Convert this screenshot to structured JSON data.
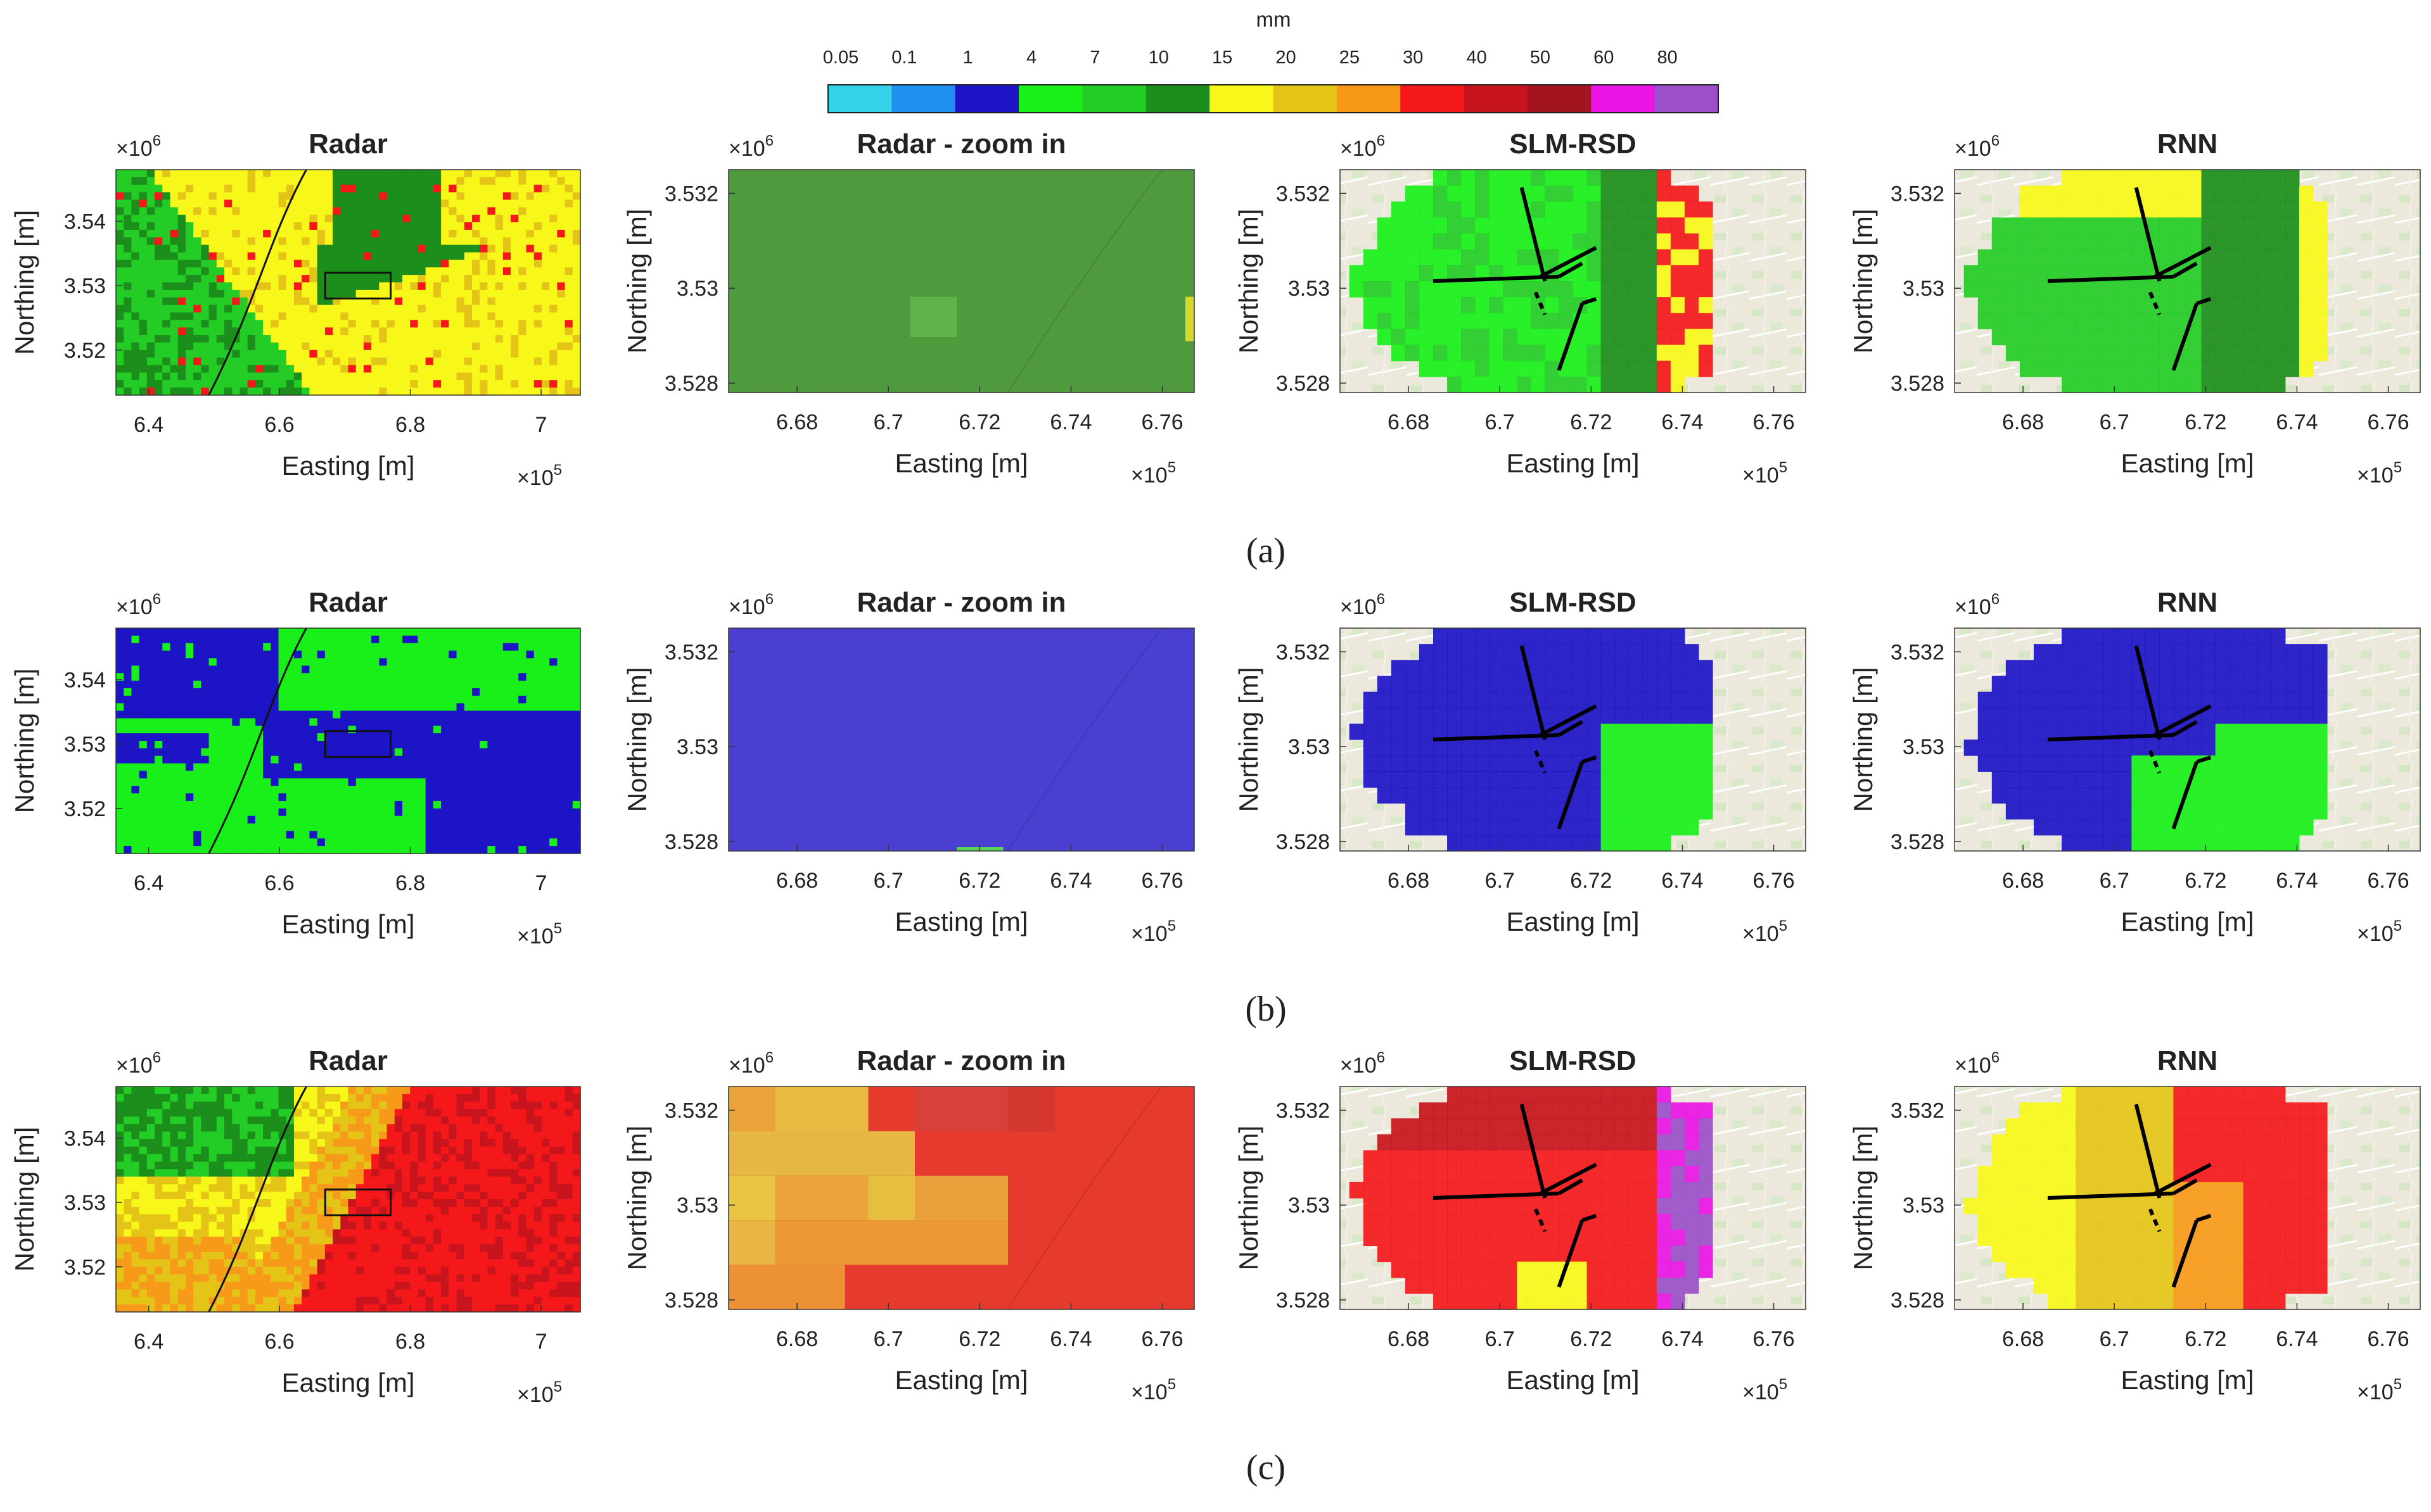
{
  "colorbar": {
    "unit": "mm",
    "tick_labels": [
      "0.05",
      "0.1",
      "1",
      "4",
      "7",
      "10",
      "15",
      "20",
      "25",
      "30",
      "40",
      "50",
      "60",
      "80"
    ],
    "bin_colors": [
      "#35d3ec",
      "#1f8ff0",
      "#1d14c6",
      "#19f019",
      "#24cc26",
      "#1b8e1b",
      "#f7f71a",
      "#e5c418",
      "#f79a1a",
      "#f4181b",
      "#c8141c",
      "#a21420",
      "#ea14e4",
      "#9b4fc8"
    ]
  },
  "axis_text": {
    "xlabel": "Easting [m]",
    "ylabel": "Northing [m]",
    "x_exponent_base": "×10",
    "x_exponent_power": "5",
    "y_exponent_base": "×10",
    "y_exponent_power": "6"
  },
  "rows": [
    {
      "caption": "(a)"
    },
    {
      "caption": "(b)"
    },
    {
      "caption": "(c)"
    }
  ],
  "chart_data": [
    {
      "type": "heatmap",
      "panel": "a-radar",
      "title": "Radar",
      "xlabel": "Easting [m]",
      "ylabel": "Northing [m]",
      "xlim": [
        6.35,
        7.06
      ],
      "ylim": [
        3.513,
        3.548
      ],
      "x_ticks": [
        6.4,
        6.6,
        6.8,
        7
      ],
      "x_tick_labels": [
        "6.4",
        "6.6",
        "6.8",
        "7"
      ],
      "y_ticks": [
        3.52,
        3.53,
        3.54
      ],
      "y_tick_labels": [
        "3.52",
        "3.53",
        "3.54"
      ],
      "dominant_classes_mm": [
        "7-10",
        "10-15",
        "15-20"
      ],
      "zoom_box_x": [
        6.67,
        6.77
      ],
      "zoom_box_y": [
        3.528,
        3.532
      ]
    },
    {
      "type": "heatmap",
      "panel": "a-radar-zoom",
      "title": "Radar - zoom in",
      "xlabel": "Easting [m]",
      "ylabel": "Northing [m]",
      "xlim": [
        6.665,
        6.767
      ],
      "ylim": [
        3.5278,
        3.5325
      ],
      "x_ticks": [
        6.68,
        6.7,
        6.72,
        6.74,
        6.76
      ],
      "x_tick_labels": [
        "6.68",
        "6.7",
        "6.72",
        "6.74",
        "6.76"
      ],
      "y_ticks": [
        3.528,
        3.53,
        3.532
      ],
      "y_tick_labels": [
        "3.528",
        "3.53",
        "3.532"
      ],
      "dominant_classes_mm": [
        "7-10"
      ]
    },
    {
      "type": "heatmap",
      "panel": "a-slm-rsd",
      "title": "SLM-RSD",
      "xlabel": "Easting [m]",
      "ylabel": "Northing [m]",
      "xlim": [
        6.665,
        6.767
      ],
      "ylim": [
        3.5278,
        3.5325
      ],
      "x_ticks": [
        6.68,
        6.7,
        6.72,
        6.74,
        6.76
      ],
      "x_tick_labels": [
        "6.68",
        "6.7",
        "6.72",
        "6.74",
        "6.76"
      ],
      "y_ticks": [
        3.528,
        3.53,
        3.532
      ],
      "y_tick_labels": [
        "3.528",
        "3.53",
        "3.532"
      ],
      "dominant_classes_mm": [
        "4-7",
        "7-10",
        "10-15",
        "15-20",
        "30-40"
      ]
    },
    {
      "type": "heatmap",
      "panel": "a-rnn",
      "title": "RNN",
      "xlabel": "Easting [m]",
      "ylabel": "Northing [m]",
      "xlim": [
        6.665,
        6.767
      ],
      "ylim": [
        3.5278,
        3.5325
      ],
      "x_ticks": [
        6.68,
        6.7,
        6.72,
        6.74,
        6.76
      ],
      "x_tick_labels": [
        "6.68",
        "6.7",
        "6.72",
        "6.74",
        "6.76"
      ],
      "y_ticks": [
        3.528,
        3.53,
        3.532
      ],
      "y_tick_labels": [
        "3.528",
        "3.53",
        "3.532"
      ],
      "dominant_classes_mm": [
        "7-10",
        "10-15",
        "15-20"
      ]
    },
    {
      "type": "heatmap",
      "panel": "b-radar",
      "title": "Radar",
      "xlabel": "Easting [m]",
      "ylabel": "Northing [m]",
      "xlim": [
        6.35,
        7.06
      ],
      "ylim": [
        3.513,
        3.548
      ],
      "x_ticks": [
        6.4,
        6.6,
        6.8,
        7
      ],
      "x_tick_labels": [
        "6.4",
        "6.6",
        "6.8",
        "7"
      ],
      "y_ticks": [
        3.52,
        3.53,
        3.54
      ],
      "y_tick_labels": [
        "3.52",
        "3.53",
        "3.54"
      ],
      "dominant_classes_mm": [
        "1-4",
        "4-7"
      ],
      "zoom_box_x": [
        6.67,
        6.77
      ],
      "zoom_box_y": [
        3.528,
        3.532
      ]
    },
    {
      "type": "heatmap",
      "panel": "b-radar-zoom",
      "title": "Radar - zoom in",
      "xlabel": "Easting [m]",
      "ylabel": "Northing [m]",
      "xlim": [
        6.665,
        6.767
      ],
      "ylim": [
        3.5278,
        3.5325
      ],
      "x_ticks": [
        6.68,
        6.7,
        6.72,
        6.74,
        6.76
      ],
      "x_tick_labels": [
        "6.68",
        "6.7",
        "6.72",
        "6.74",
        "6.76"
      ],
      "y_ticks": [
        3.528,
        3.53,
        3.532
      ],
      "y_tick_labels": [
        "3.528",
        "3.53",
        "3.532"
      ],
      "dominant_classes_mm": [
        "1-4"
      ]
    },
    {
      "type": "heatmap",
      "panel": "b-slm-rsd",
      "title": "SLM-RSD",
      "xlabel": "Easting [m]",
      "ylabel": "Northing [m]",
      "xlim": [
        6.665,
        6.767
      ],
      "ylim": [
        3.5278,
        3.5325
      ],
      "x_ticks": [
        6.68,
        6.7,
        6.72,
        6.74,
        6.76
      ],
      "x_tick_labels": [
        "6.68",
        "6.7",
        "6.72",
        "6.74",
        "6.76"
      ],
      "y_ticks": [
        3.528,
        3.53,
        3.532
      ],
      "y_tick_labels": [
        "3.528",
        "3.53",
        "3.532"
      ],
      "dominant_classes_mm": [
        "1-4",
        "4-7"
      ]
    },
    {
      "type": "heatmap",
      "panel": "b-rnn",
      "title": "RNN",
      "xlabel": "Easting [m]",
      "ylabel": "Northing [m]",
      "xlim": [
        6.665,
        6.767
      ],
      "ylim": [
        3.5278,
        3.5325
      ],
      "x_ticks": [
        6.68,
        6.7,
        6.72,
        6.74,
        6.76
      ],
      "x_tick_labels": [
        "6.68",
        "6.7",
        "6.72",
        "6.74",
        "6.76"
      ],
      "y_ticks": [
        3.528,
        3.53,
        3.532
      ],
      "y_tick_labels": [
        "3.528",
        "3.53",
        "3.532"
      ],
      "dominant_classes_mm": [
        "1-4",
        "4-7"
      ]
    },
    {
      "type": "heatmap",
      "panel": "c-radar",
      "title": "Radar",
      "xlabel": "Easting [m]",
      "ylabel": "Northing [m]",
      "xlim": [
        6.35,
        7.06
      ],
      "ylim": [
        3.513,
        3.548
      ],
      "x_ticks": [
        6.4,
        6.6,
        6.8,
        7
      ],
      "x_tick_labels": [
        "6.4",
        "6.6",
        "6.8",
        "7"
      ],
      "y_ticks": [
        3.52,
        3.53,
        3.54
      ],
      "y_tick_labels": [
        "3.52",
        "3.53",
        "3.54"
      ],
      "dominant_classes_mm": [
        "10-15",
        "15-20",
        "20-25",
        "25-30",
        "30-40"
      ],
      "zoom_box_x": [
        6.67,
        6.77
      ],
      "zoom_box_y": [
        3.528,
        3.532
      ]
    },
    {
      "type": "heatmap",
      "panel": "c-radar-zoom",
      "title": "Radar - zoom in",
      "xlabel": "Easting [m]",
      "ylabel": "Northing [m]",
      "xlim": [
        6.665,
        6.767
      ],
      "ylim": [
        3.5278,
        3.5325
      ],
      "x_ticks": [
        6.68,
        6.7,
        6.72,
        6.74,
        6.76
      ],
      "x_tick_labels": [
        "6.68",
        "6.7",
        "6.72",
        "6.74",
        "6.76"
      ],
      "y_ticks": [
        3.528,
        3.53,
        3.532
      ],
      "y_tick_labels": [
        "3.528",
        "3.53",
        "3.532"
      ],
      "dominant_classes_mm": [
        "20-25",
        "25-30",
        "30-40"
      ]
    },
    {
      "type": "heatmap",
      "panel": "c-slm-rsd",
      "title": "SLM-RSD",
      "xlabel": "Easting [m]",
      "ylabel": "Northing [m]",
      "xlim": [
        6.665,
        6.767
      ],
      "ylim": [
        3.5278,
        3.5325
      ],
      "x_ticks": [
        6.68,
        6.7,
        6.72,
        6.74,
        6.76
      ],
      "x_tick_labels": [
        "6.68",
        "6.7",
        "6.72",
        "6.74",
        "6.76"
      ],
      "y_ticks": [
        3.528,
        3.53,
        3.532
      ],
      "y_tick_labels": [
        "3.528",
        "3.53",
        "3.532"
      ],
      "dominant_classes_mm": [
        "30-40",
        "40-50",
        "60-80"
      ]
    },
    {
      "type": "heatmap",
      "panel": "c-rnn",
      "title": "RNN",
      "xlabel": "Easting [m]",
      "ylabel": "Northing [m]",
      "xlim": [
        6.665,
        6.767
      ],
      "ylim": [
        3.5278,
        3.5325
      ],
      "x_ticks": [
        6.68,
        6.7,
        6.72,
        6.74,
        6.76
      ],
      "x_tick_labels": [
        "6.68",
        "6.7",
        "6.72",
        "6.74",
        "6.76"
      ],
      "y_ticks": [
        3.528,
        3.53,
        3.532
      ],
      "y_tick_labels": [
        "3.528",
        "3.53",
        "3.532"
      ],
      "dominant_classes_mm": [
        "15-20",
        "20-25",
        "25-30",
        "30-40"
      ]
    }
  ]
}
